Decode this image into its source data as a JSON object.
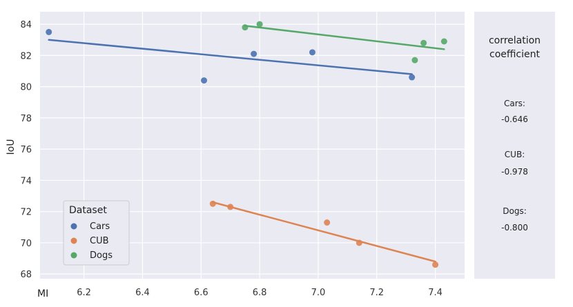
{
  "chart_data": {
    "type": "scatter",
    "xlabel": "MI",
    "ylabel": "IoU",
    "xlim": [
      6.05,
      7.5
    ],
    "ylim": [
      67.7,
      84.8
    ],
    "xticks": [
      6.2,
      6.4,
      6.6,
      6.8,
      7.0,
      7.2,
      7.4
    ],
    "yticks": [
      68,
      70,
      72,
      74,
      76,
      78,
      80,
      82,
      84
    ],
    "grid": true,
    "legend": {
      "title": "Dataset",
      "placement": "lower-left"
    },
    "series": [
      {
        "name": "Cars",
        "color": "#4c72b0",
        "points": [
          [
            6.08,
            83.5
          ],
          [
            6.61,
            80.4
          ],
          [
            6.78,
            82.1
          ],
          [
            6.98,
            82.2
          ],
          [
            7.32,
            80.6
          ]
        ],
        "fit": [
          [
            6.08,
            83.0
          ],
          [
            7.32,
            80.8
          ]
        ]
      },
      {
        "name": "CUB",
        "color": "#dd8452",
        "points": [
          [
            6.64,
            72.5
          ],
          [
            6.7,
            72.3
          ],
          [
            7.03,
            71.3
          ],
          [
            7.14,
            70.0
          ],
          [
            7.4,
            68.6
          ]
        ],
        "fit": [
          [
            6.64,
            72.6
          ],
          [
            7.4,
            68.8
          ]
        ]
      },
      {
        "name": "Dogs",
        "color": "#55a868",
        "points": [
          [
            6.75,
            83.8
          ],
          [
            6.8,
            84.0
          ],
          [
            7.33,
            81.7
          ],
          [
            7.36,
            82.8
          ],
          [
            7.43,
            82.9
          ]
        ],
        "fit": [
          [
            6.75,
            83.9
          ],
          [
            7.43,
            82.4
          ]
        ]
      }
    ]
  },
  "side_panel": {
    "title": "correlation coefficient",
    "entries": [
      {
        "label": "Cars:",
        "value": "-0.646"
      },
      {
        "label": "CUB:",
        "value": "-0.978"
      },
      {
        "label": "Dogs:",
        "value": "-0.800"
      }
    ]
  }
}
